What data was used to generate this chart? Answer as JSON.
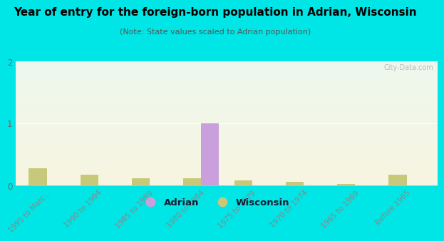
{
  "title": "Year of entry for the foreign-born population in Adrian, Wisconsin",
  "subtitle": "(Note: State values scaled to Adrian population)",
  "categories": [
    "1995 to Marc...",
    "1990 to 1994",
    "1985 to 1989",
    "1980 to 1984",
    "1975 to 1979",
    "1970 to 1974",
    "1965 to 1969",
    "Before 1965"
  ],
  "adrian_values": [
    0,
    0,
    0,
    1.0,
    0,
    0,
    0,
    0
  ],
  "wisconsin_values": [
    0.28,
    0.18,
    0.12,
    0.12,
    0.08,
    0.06,
    0.03,
    0.18
  ],
  "adrian_color": "#c9a0dc",
  "wisconsin_color": "#c8c87a",
  "ylim": [
    0,
    2
  ],
  "yticks": [
    0,
    1,
    2
  ],
  "background_color": "#00e5e5",
  "watermark": "City-Data.com",
  "bar_width": 0.35,
  "legend_adrian": "Adrian",
  "legend_wisconsin": "Wisconsin",
  "title_fontsize": 11,
  "subtitle_fontsize": 8
}
